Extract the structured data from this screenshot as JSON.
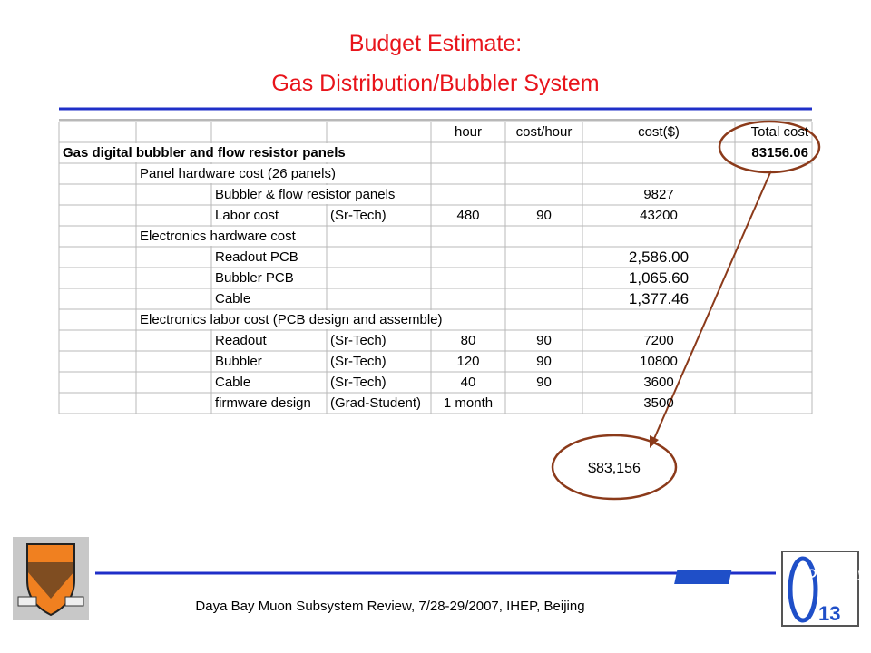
{
  "title": {
    "line1": "Budget Estimate:",
    "line2": "Gas Distribution/Bubbler System"
  },
  "table": {
    "header": {
      "hour": "hour",
      "cost_per_hour": "cost/hour",
      "cost": "cost($)",
      "total": "Total cost"
    },
    "rows": [
      {
        "group": "Gas digital bubbler and flow resistor panels",
        "total": 83156.06
      },
      {
        "section": "Panel hardware cost (26 panels)"
      },
      {
        "item": "Bubbler & flow resistor panels",
        "cost": 9827
      },
      {
        "item": "Labor cost",
        "rate_type": "(Sr-Tech)",
        "hour": 480,
        "cost_per_hour": 90,
        "cost": 43200
      },
      {
        "section": "Electronics hardware cost"
      },
      {
        "item": "Readout PCB",
        "cost": "2,586.00"
      },
      {
        "item": "Bubbler PCB",
        "cost": "1,065.60"
      },
      {
        "item": "Cable",
        "cost": "1,377.46"
      },
      {
        "section": "Electronics labor cost (PCB design and assemble)"
      },
      {
        "item": "Readout",
        "rate_type": "(Sr-Tech)",
        "hour": 80,
        "cost_per_hour": 90,
        "cost": 7200
      },
      {
        "item": "Bubbler",
        "rate_type": "(Sr-Tech)",
        "hour": 120,
        "cost_per_hour": 90,
        "cost": 10800
      },
      {
        "item": "Cable",
        "rate_type": "(Sr-Tech)",
        "hour": 40,
        "cost_per_hour": 90,
        "cost": 3600
      },
      {
        "item": "firmware design",
        "rate_type": "(Grad-Student)",
        "hour": "1 month",
        "cost": 3500
      }
    ]
  },
  "annotation": "$83,156",
  "footer": "Daya Bay Muon Subsystem Review, 7/28-29/2007, IHEP, Beijing",
  "logo": {
    "name": "Daya Bay",
    "subscript": "13"
  }
}
